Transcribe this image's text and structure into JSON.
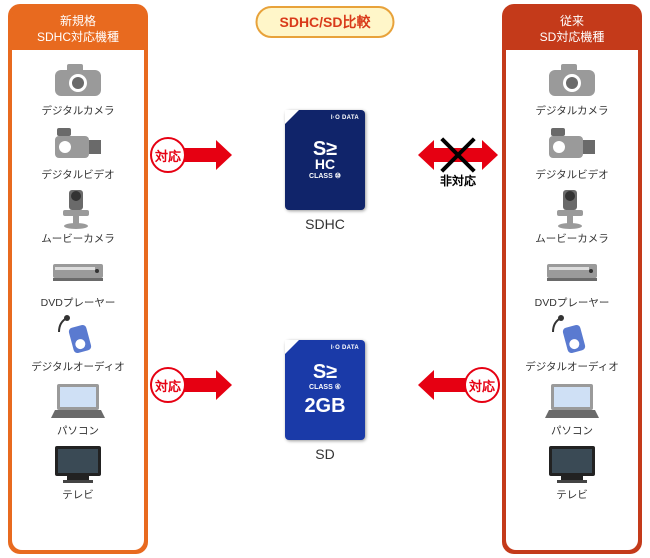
{
  "title": {
    "text": "SDHC/SD比較",
    "color": "#d93a1a",
    "bg": "#fff6c9",
    "border": "#e8a23a"
  },
  "columns": {
    "left": {
      "header_line1": "新規格",
      "header_line2": "SDHC対応機種",
      "frame_color": "#e86a1f",
      "header_bg": "#e86a1f"
    },
    "right": {
      "header_line1": "従来",
      "header_line2": "SD対応機種",
      "frame_color": "#c43a1a",
      "header_bg": "#c43a1a"
    }
  },
  "devices": [
    {
      "key": "camera",
      "label": "デジタルカメラ"
    },
    {
      "key": "video",
      "label": "デジタルビデオ"
    },
    {
      "key": "movie",
      "label": "ムービーカメラ"
    },
    {
      "key": "dvd",
      "label": "DVDプレーヤー"
    },
    {
      "key": "audio",
      "label": "デジタルオーディオ"
    },
    {
      "key": "pc",
      "label": "パソコン"
    },
    {
      "key": "tv",
      "label": "テレビ"
    }
  ],
  "cards": {
    "sdhc": {
      "label": "SDHC",
      "brand": "I·O DATA",
      "bg": "#10246a",
      "logo_top": "S≥",
      "logo_bot": "HC",
      "class_text": "CLASS ⑩"
    },
    "sd": {
      "label": "SD",
      "brand": "I·O DATA",
      "bg": "#1a3aa8",
      "logo": "S≥",
      "class_text": "CLASS ④",
      "capacity": "2GB"
    }
  },
  "arrows": {
    "color": "#e60012",
    "compat_label": "対応",
    "noncompat_label": "非対応",
    "badge_border": "#e60012",
    "badge_text": "#e60012"
  },
  "links": {
    "sdhc_left": {
      "compatible": true
    },
    "sdhc_right": {
      "compatible": false
    },
    "sd_left": {
      "compatible": true
    },
    "sd_right": {
      "compatible": true
    }
  }
}
